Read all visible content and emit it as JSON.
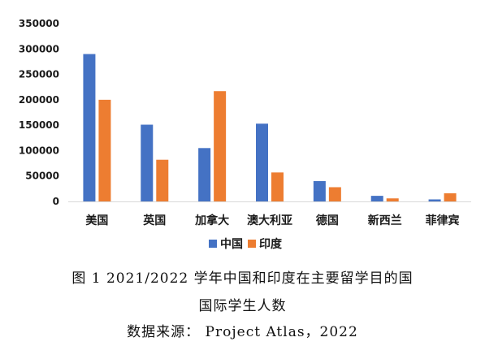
{
  "caption": {
    "line1": "图 1  2021/2022 学年中国和印度在主要留学目的国",
    "line2": "国际学生人数",
    "line3": "数据来源： Project Atlas，2022"
  },
  "chart_data": {
    "type": "bar",
    "title": "",
    "xlabel": "",
    "ylabel": "",
    "categories": [
      "美国",
      "英国",
      "加拿大",
      "澳大利亚",
      "德国",
      "新西兰",
      "菲律宾"
    ],
    "series": [
      {
        "name": "中国",
        "color": "#4472c4",
        "values": [
          290000,
          151000,
          105000,
          153000,
          40000,
          11000,
          4000
        ]
      },
      {
        "name": "印度",
        "color": "#ed7d31",
        "values": [
          200000,
          82000,
          217000,
          57000,
          28000,
          6000,
          16000
        ]
      }
    ],
    "ylim": [
      0,
      350000
    ],
    "yticks": [
      "0",
      "50000",
      "100000",
      "150000",
      "200000",
      "250000",
      "300000",
      "350000"
    ],
    "grid": false,
    "legend": "bottom"
  }
}
